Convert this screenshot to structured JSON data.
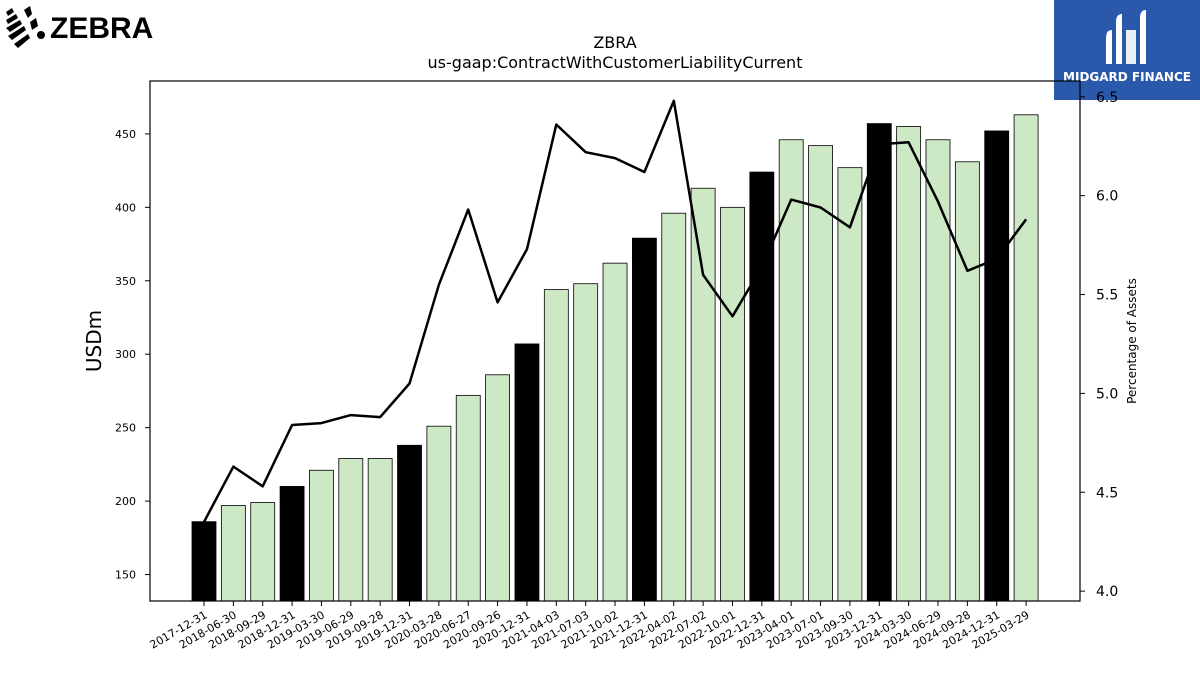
{
  "branding": {
    "left_logo_text": "ZEBRA",
    "right_logo_text": "MIDGARD FINANCE",
    "right_logo_color": "#2a58ab"
  },
  "chart_data": {
    "type": "bar",
    "title": "ZBRA",
    "subtitle": "us-gaap:ContractWithCustomerLiabilityCurrent",
    "ylabel": "USDm",
    "y2label": "Percentage of Assets",
    "ylim": [
      132,
      486
    ],
    "y2lim": [
      3.95,
      6.58
    ],
    "yticks": [
      150,
      200,
      250,
      300,
      350,
      400,
      450
    ],
    "y2ticks": [
      4.0,
      4.5,
      5.0,
      5.5,
      6.0,
      6.5
    ],
    "categories": [
      "2017-12-31",
      "2018-06-30",
      "2018-09-29",
      "2018-12-31",
      "2019-03-30",
      "2019-06-29",
      "2019-09-28",
      "2019-12-31",
      "2020-03-28",
      "2020-06-27",
      "2020-09-26",
      "2020-12-31",
      "2021-04-03",
      "2021-07-03",
      "2021-10-02",
      "2021-12-31",
      "2022-04-02",
      "2022-07-02",
      "2022-10-01",
      "2022-12-31",
      "2023-04-01",
      "2023-07-01",
      "2023-09-30",
      "2023-12-31",
      "2024-03-30",
      "2024-06-29",
      "2024-09-28",
      "2024-12-31",
      "2025-03-29"
    ],
    "series": [
      {
        "type": "bar",
        "values": [
          186,
          197,
          199,
          210,
          221,
          229,
          229,
          238,
          251,
          272,
          286,
          307,
          344,
          348,
          362,
          379,
          396,
          413,
          400,
          424,
          446,
          442,
          427,
          457,
          455,
          446,
          431,
          452,
          463
        ],
        "annual_color": "#000000",
        "quarter_color": "#cde8c5"
      },
      {
        "type": "line",
        "axis": "secondary",
        "values": [
          4.35,
          4.63,
          4.53,
          4.84,
          4.85,
          4.89,
          4.88,
          5.05,
          5.55,
          5.93,
          5.46,
          5.73,
          6.36,
          6.22,
          6.19,
          6.12,
          6.48,
          5.6,
          5.39,
          5.64,
          5.98,
          5.94,
          5.84,
          6.26,
          6.27,
          5.97,
          5.62,
          5.68,
          5.88
        ],
        "color": "#000000"
      }
    ],
    "grid": false,
    "legend": "none"
  }
}
